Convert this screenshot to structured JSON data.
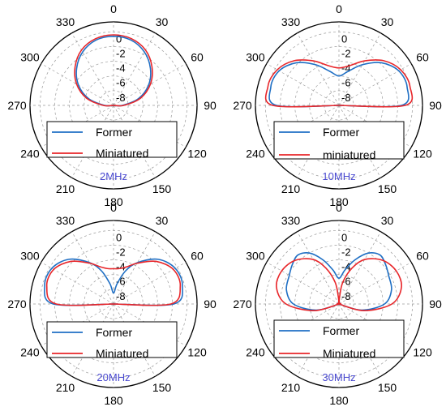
{
  "colors": {
    "former": "#1f6fc4",
    "miniatured": "#e8262a",
    "freq": "#4a4ad0",
    "grid": "#9a9a9a",
    "frame": "#000000"
  },
  "chart_data": [
    {
      "type": "polar-line",
      "freq_label": "2MHz",
      "angle_ticks": [
        "0",
        "30",
        "60",
        "90",
        "120",
        "150",
        "180",
        "210",
        "240",
        "270",
        "300",
        "330"
      ],
      "radial_ticks": [
        "0",
        "-2",
        "-4",
        "-6",
        "-8"
      ],
      "rlim": [
        -10,
        0
      ],
      "legend": [
        "Former",
        "Miniatured"
      ],
      "series": [
        {
          "name": "Former",
          "angle_deg": [
            0,
            15,
            30,
            45,
            60,
            75,
            90,
            105,
            120,
            135,
            150,
            165,
            180,
            195,
            210,
            225,
            240,
            255,
            270,
            285,
            300,
            315,
            330,
            345
          ],
          "values": [
            -0.6,
            -0.8,
            -1.6,
            -2.9,
            -4.5,
            -6.5,
            -8.8,
            -10,
            -10,
            -10,
            -10,
            -10,
            -10,
            -10,
            -10,
            -10,
            -10,
            -10,
            -8.8,
            -6.5,
            -4.5,
            -2.9,
            -1.6,
            -0.8
          ]
        },
        {
          "name": "Miniatured",
          "angle_deg": [
            0,
            15,
            30,
            45,
            60,
            75,
            90,
            105,
            120,
            135,
            150,
            165,
            180,
            195,
            210,
            225,
            240,
            255,
            270,
            285,
            300,
            315,
            330,
            345
          ],
          "values": [
            -0.4,
            -0.6,
            -1.3,
            -2.6,
            -4.2,
            -6.2,
            -8.6,
            -10,
            -10,
            -10,
            -10,
            -10,
            -10,
            -10,
            -10,
            -10,
            -10,
            -10,
            -8.6,
            -6.2,
            -4.2,
            -2.6,
            -1.3,
            -0.6
          ]
        }
      ]
    },
    {
      "type": "polar-line",
      "freq_label": "10MHz",
      "angle_ticks": [
        "0",
        "30",
        "60",
        "90",
        "120",
        "150",
        "180",
        "210",
        "240",
        "270",
        "300",
        "330"
      ],
      "radial_ticks": [
        "0",
        "-2",
        "-4",
        "-6",
        "-8"
      ],
      "rlim": [
        -10,
        0
      ],
      "legend": [
        "Former",
        "miniatured"
      ],
      "series": [
        {
          "name": "Former",
          "angle_deg": [
            0,
            15,
            30,
            45,
            60,
            75,
            90,
            105,
            120,
            135,
            150,
            165,
            180,
            195,
            210,
            225,
            240,
            255,
            270,
            285,
            300,
            315,
            330,
            345
          ],
          "values": [
            -6.0,
            -5.2,
            -3.6,
            -1.8,
            -0.6,
            -0.4,
            -1.5,
            -10,
            -10,
            -10,
            -10,
            -10,
            -10,
            -10,
            -10,
            -10,
            -10,
            -10,
            -1.5,
            -0.4,
            -0.6,
            -1.8,
            -3.6,
            -5.2
          ]
        },
        {
          "name": "miniatured",
          "angle_deg": [
            0,
            15,
            30,
            45,
            60,
            75,
            90,
            105,
            120,
            135,
            150,
            165,
            180,
            195,
            210,
            225,
            240,
            255,
            270,
            285,
            300,
            315,
            330,
            345
          ],
          "values": [
            -4.9,
            -4.4,
            -3.0,
            -1.4,
            -0.3,
            0,
            -1.0,
            -10,
            -10,
            -10,
            -10,
            -10,
            -10,
            -10,
            -10,
            -10,
            -10,
            -10,
            -1.0,
            0,
            -0.3,
            -1.4,
            -3.0,
            -4.4
          ]
        }
      ]
    },
    {
      "type": "polar-line",
      "freq_label": "20MHz",
      "angle_ticks": [
        "0",
        "30",
        "60",
        "90",
        "120",
        "150",
        "180",
        "210",
        "240",
        "270",
        "300",
        "330"
      ],
      "radial_ticks": [
        "0",
        "-2",
        "-4",
        "-6",
        "-8"
      ],
      "rlim": [
        -10,
        0
      ],
      "legend": [
        "Former",
        "Miniatured"
      ],
      "series": [
        {
          "name": "Former",
          "angle_deg": [
            0,
            10,
            20,
            30,
            45,
            60,
            75,
            90,
            105,
            120,
            135,
            150,
            165,
            180,
            195,
            210,
            225,
            240,
            255,
            270,
            285,
            300,
            315,
            330,
            340,
            350
          ],
          "values": [
            -8.5,
            -7.2,
            -5.2,
            -3.5,
            -1.4,
            -0.3,
            -0.3,
            -1.8,
            -10,
            -10,
            -10,
            -10,
            -10,
            -10,
            -10,
            -10,
            -10,
            -10,
            -10,
            -1.8,
            -0.3,
            -0.3,
            -1.4,
            -3.5,
            -5.2,
            -7.2
          ]
        },
        {
          "name": "Miniatured",
          "angle_deg": [
            0,
            10,
            20,
            30,
            45,
            60,
            75,
            90,
            105,
            120,
            135,
            150,
            165,
            180,
            195,
            210,
            225,
            240,
            255,
            270,
            285,
            300,
            315,
            330,
            340,
            350
          ],
          "values": [
            -5.2,
            -5.1,
            -4.6,
            -3.6,
            -1.8,
            -0.6,
            -0.6,
            -2.2,
            -10,
            -10,
            -10,
            -10,
            -10,
            -10,
            -10,
            -10,
            -10,
            -10,
            -10,
            -2.2,
            -0.6,
            -0.6,
            -1.8,
            -3.6,
            -4.6,
            -5.1
          ]
        }
      ]
    },
    {
      "type": "polar-line",
      "freq_label": "30MHz",
      "angle_ticks": [
        "0",
        "30",
        "60",
        "90",
        "120",
        "150",
        "180",
        "210",
        "240",
        "270",
        "300",
        "330"
      ],
      "radial_ticks": [
        "0",
        "-2",
        "-4",
        "-6",
        "-8"
      ],
      "rlim": [
        -10,
        0
      ],
      "legend": [
        "Former",
        "Miniatured"
      ],
      "series": [
        {
          "name": "Former",
          "angle_deg": [
            0,
            10,
            20,
            30,
            40,
            50,
            60,
            75,
            90,
            105,
            120,
            135,
            150,
            165,
            180,
            195,
            210,
            225,
            240,
            255,
            270,
            285,
            300,
            310,
            320,
            330,
            340,
            350
          ],
          "values": [
            -6.5,
            -5.3,
            -3.6,
            -2.0,
            -1.3,
            -1.7,
            -2.2,
            -2.6,
            -3.8,
            -6.8,
            -10,
            -10,
            -10,
            -10,
            -10,
            -10,
            -10,
            -10,
            -10,
            -6.8,
            -3.8,
            -2.6,
            -2.2,
            -1.7,
            -1.3,
            -2.0,
            -3.6,
            -5.3
          ]
        },
        {
          "name": "Miniatured",
          "angle_deg": [
            0,
            5,
            10,
            20,
            30,
            45,
            60,
            75,
            90,
            105,
            120,
            135,
            150,
            165,
            180,
            195,
            210,
            225,
            240,
            255,
            270,
            285,
            300,
            315,
            330,
            340,
            350,
            355
          ],
          "values": [
            -10,
            -9.0,
            -7.0,
            -4.8,
            -3.0,
            -1.6,
            -1.0,
            -1.2,
            -2.8,
            -6.5,
            -10,
            -10,
            -10,
            -10,
            -10,
            -10,
            -10,
            -10,
            -10,
            -6.5,
            -2.8,
            -1.2,
            -1.0,
            -1.6,
            -3.0,
            -4.8,
            -7.0,
            -9.0
          ]
        }
      ]
    }
  ]
}
